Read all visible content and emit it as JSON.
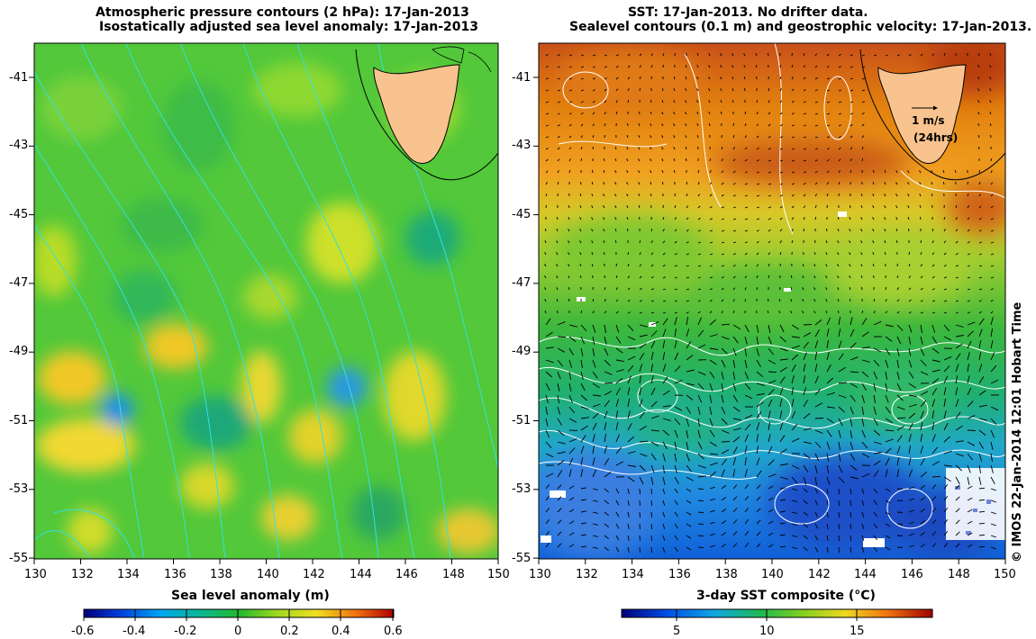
{
  "left_panel": {
    "title_line1": "Atmospheric pressure contours (2 hPa): 17-Jan-2013",
    "title_line2": "Isostatically adjusted sea level anomaly: 17-Jan-2013",
    "colorbar_label": "Sea level anomaly (m)",
    "colorbar_ticks": [
      "-0.6",
      "-0.4",
      "-0.2",
      "0",
      "0.2",
      "0.4",
      "0.6"
    ]
  },
  "right_panel": {
    "title_line1": "SST: 17-Jan-2013. No drifter data.",
    "title_line2": "Sealevel contours (0.1 m) and geostrophic velocity: 17-Jan-2013.",
    "colorbar_label": "3-day SST composite (°C)",
    "colorbar_ticks": [
      "5",
      "10",
      "15"
    ],
    "velocity_key": "1 m/s",
    "velocity_key_sub": "(24hrs)"
  },
  "lat_ticks": [
    "-41",
    "-43",
    "-45",
    "-47",
    "-49",
    "-51",
    "-53",
    "-55"
  ],
  "lon_ticks": [
    "130",
    "132",
    "134",
    "136",
    "138",
    "140",
    "142",
    "144",
    "146",
    "148",
    "150"
  ],
  "credit": "© IMOS 22-Jan-2014 12:01 Hobart Time",
  "colors": {
    "land": "#f8c38e",
    "pressure_contours": "#33e0e0",
    "sealevel_contours": "#ffffff"
  }
}
